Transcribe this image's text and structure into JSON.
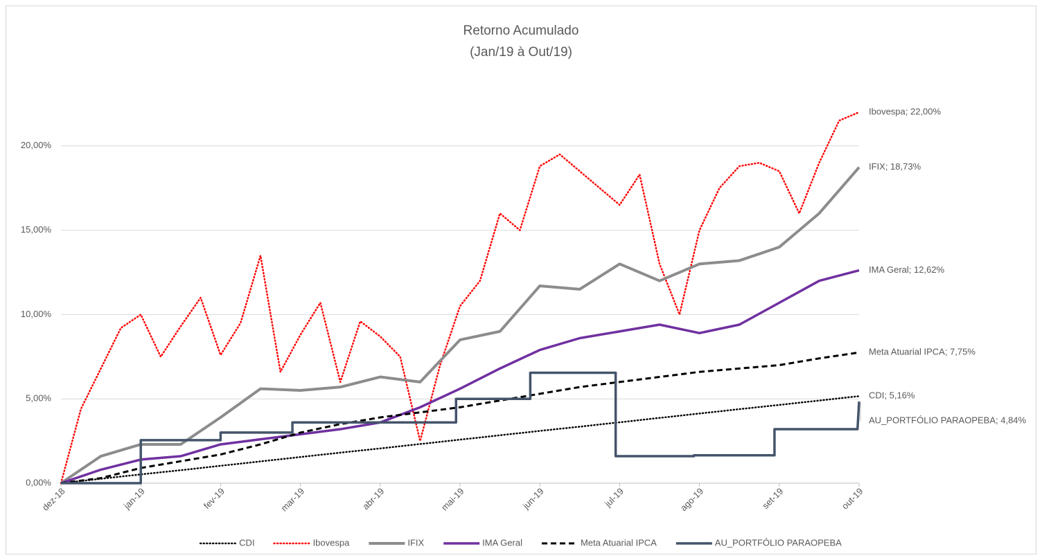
{
  "chart_data": {
    "type": "line",
    "title": "Retorno Acumulado",
    "subtitle": "(Jan/19 à Out/19)",
    "xlim": [
      0,
      10
    ],
    "xticks": [
      {
        "value": 0,
        "label": "dez-18"
      },
      {
        "value": 1,
        "label": "jan-19"
      },
      {
        "value": 2,
        "label": "fev-19"
      },
      {
        "value": 3,
        "label": "mar-19"
      },
      {
        "value": 4,
        "label": "abr-19"
      },
      {
        "value": 5,
        "label": "mai-19"
      },
      {
        "value": 6,
        "label": "jun-19"
      },
      {
        "value": 7,
        "label": "jul-19"
      },
      {
        "value": 8,
        "label": "ago-19"
      },
      {
        "value": 9,
        "label": "set-19"
      },
      {
        "value": 10,
        "label": "out-19"
      }
    ],
    "ylim": [
      0,
      25
    ],
    "yticks": [
      {
        "value": 0,
        "label": "0,00%"
      },
      {
        "value": 5,
        "label": "5,00%"
      },
      {
        "value": 10,
        "label": "10,00%"
      },
      {
        "value": 15,
        "label": "15,00%"
      },
      {
        "value": 20,
        "label": "20,00%"
      }
    ],
    "grid": true,
    "legend": "bottom",
    "series": [
      {
        "name": "CDI",
        "color": "#000000",
        "style": "dotted",
        "end_label": "CDI; 5,16%",
        "x": [
          0,
          0.5,
          1,
          1.5,
          2,
          2.5,
          3,
          3.5,
          4,
          4.5,
          5,
          5.5,
          6,
          6.5,
          7,
          7.5,
          8,
          8.5,
          9,
          9.5,
          10
        ],
        "values": [
          0,
          0.26,
          0.52,
          0.77,
          1.03,
          1.29,
          1.55,
          1.81,
          2.06,
          2.32,
          2.58,
          2.84,
          3.1,
          3.35,
          3.61,
          3.87,
          4.13,
          4.39,
          4.64,
          4.9,
          5.16
        ]
      },
      {
        "name": "Ibovespa",
        "color": "#ff0000",
        "style": "dotted",
        "end_label": "Ibovespa; 22,00%",
        "x": [
          0,
          0.25,
          0.5,
          0.75,
          1,
          1.25,
          1.5,
          1.75,
          2,
          2.25,
          2.5,
          2.75,
          3,
          3.25,
          3.5,
          3.75,
          4,
          4.25,
          4.5,
          4.75,
          5,
          5.25,
          5.5,
          5.75,
          6,
          6.25,
          6.5,
          6.75,
          7,
          7.25,
          7.5,
          7.75,
          8,
          8.25,
          8.5,
          8.75,
          9,
          9.25,
          9.5,
          9.75,
          10
        ],
        "values": [
          0,
          4.4,
          6.8,
          9.2,
          10,
          7.5,
          9.3,
          11,
          7.6,
          9.5,
          13.5,
          6.6,
          8.8,
          10.7,
          6,
          9.6,
          8.7,
          7.5,
          2.5,
          7,
          10.5,
          12,
          16,
          15,
          18.8,
          19.5,
          18.5,
          17.5,
          16.5,
          18.3,
          13,
          10,
          15,
          17.5,
          18.8,
          19,
          18.5,
          16,
          19,
          21.5,
          22
        ]
      },
      {
        "name": "IFIX",
        "color": "#8c8c8c",
        "style": "solid",
        "end_label": "IFIX; 18,73%",
        "x": [
          0,
          0.5,
          1,
          1.5,
          2,
          2.5,
          3,
          3.5,
          4,
          4.5,
          5,
          5.5,
          6,
          6.5,
          7,
          7.5,
          8,
          8.5,
          9,
          9.5,
          10
        ],
        "values": [
          0,
          1.6,
          2.3,
          2.3,
          3.9,
          5.6,
          5.5,
          5.7,
          6.3,
          6,
          8.5,
          9,
          11.7,
          11.5,
          13,
          12,
          13,
          13.2,
          14,
          16,
          18.73
        ]
      },
      {
        "name": "IMA Geral",
        "color": "#7030a0",
        "style": "solid",
        "end_label": "IMA Geral; 12,62%",
        "x": [
          0,
          0.5,
          1,
          1.5,
          2,
          2.5,
          3,
          3.5,
          4,
          4.5,
          5,
          5.5,
          6,
          6.5,
          7,
          7.5,
          8,
          8.5,
          9,
          9.5,
          10
        ],
        "values": [
          0,
          0.8,
          1.4,
          1.6,
          2.3,
          2.6,
          2.9,
          3.2,
          3.6,
          4.5,
          5.6,
          6.8,
          7.9,
          8.6,
          9,
          9.4,
          8.9,
          9.4,
          10.7,
          12,
          12.62
        ]
      },
      {
        "name": "Meta Atuarial IPCA",
        "color": "#000000",
        "style": "dashed",
        "end_label": "Meta Atuarial IPCA; 7,75%",
        "x": [
          0,
          0.5,
          1,
          1.5,
          2,
          2.5,
          3,
          3.5,
          4,
          4.5,
          5,
          5.5,
          6,
          6.5,
          7,
          7.5,
          8,
          8.5,
          9,
          9.5,
          10
        ],
        "values": [
          0,
          0.3,
          0.9,
          1.3,
          1.7,
          2.3,
          3,
          3.5,
          3.9,
          4.2,
          4.5,
          4.9,
          5.3,
          5.7,
          6,
          6.3,
          6.6,
          6.8,
          7,
          7.4,
          7.75
        ]
      },
      {
        "name": "AU_PORTFÓLIO PARAOPEBA",
        "color": "#44546a",
        "style": "solid",
        "end_label": "AU_PORTFÓLIO PARAOPEBA; 4,84%",
        "x": [
          0,
          1,
          1,
          2,
          2,
          2.9,
          2.9,
          4.95,
          4.95,
          5.88,
          5.88,
          6.95,
          6.95,
          7.93,
          7.93,
          8.94,
          8.94,
          9.98,
          10
        ],
        "values": [
          0,
          0,
          2.55,
          2.55,
          3,
          3,
          3.6,
          3.6,
          5,
          5,
          6.55,
          6.55,
          1.6,
          1.6,
          1.65,
          1.65,
          3.2,
          3.2,
          4.84
        ]
      }
    ]
  }
}
